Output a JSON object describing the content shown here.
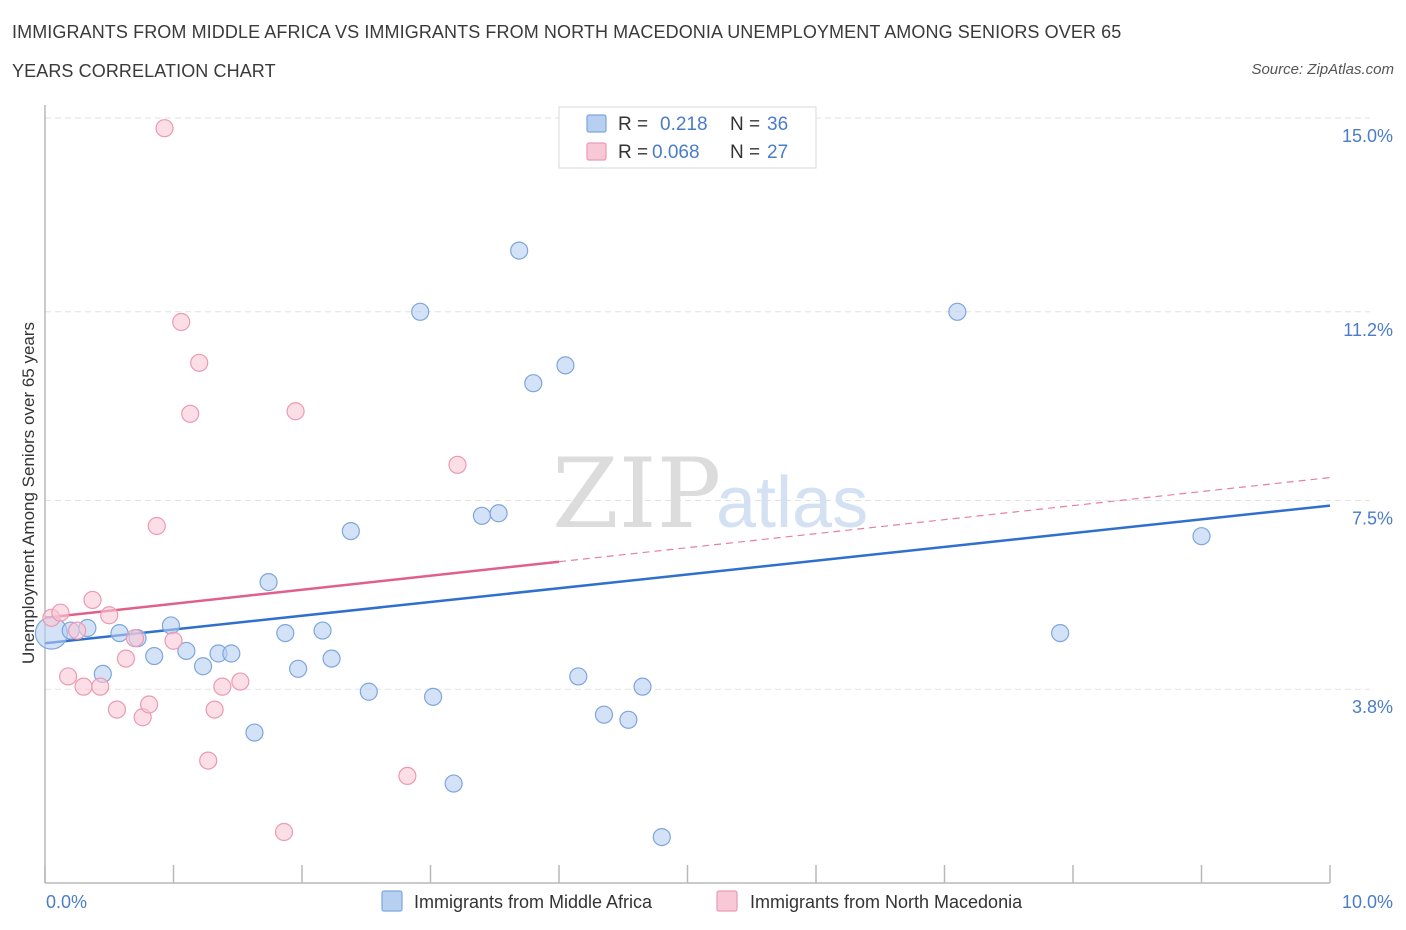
{
  "chart_data": {
    "type": "scatter",
    "title_line_1": "IMMIGRANTS FROM MIDDLE AFRICA VS IMMIGRANTS FROM NORTH MACEDONIA UNEMPLOYMENT AMONG SENIORS OVER 65",
    "title_line_2": "YEARS CORRELATION CHART",
    "source": "Source: ZipAtlas.com",
    "ylabel": "Unemployment Among Seniors over 65 years",
    "x_min_label": "0.0%",
    "x_max_label": "10.0%",
    "xlim": [
      0,
      10
    ],
    "ylim": [
      0,
      15
    ],
    "y_ticks": [
      {
        "value": 3.8,
        "label": "3.8%"
      },
      {
        "value": 7.5,
        "label": "7.5%"
      },
      {
        "value": 11.2,
        "label": "11.2%"
      },
      {
        "value": 15.0,
        "label": "15.0%"
      }
    ],
    "watermark": {
      "part1": "ZIP",
      "part2": "atlas"
    },
    "legend": {
      "r_label": "R =",
      "n_label": "N =",
      "entries": [
        {
          "r": "0.218",
          "n": "36"
        },
        {
          "r": "0.068",
          "n": "27"
        }
      ]
    },
    "series": [
      {
        "name": "Immigrants from Middle Africa",
        "fill": "#b7cff1",
        "stroke": "#7ea6dc",
        "trend_color": "#2f6fce",
        "trend": {
          "x0": 0.0,
          "y0": 4.7,
          "x1": 10.0,
          "y1": 7.4,
          "dashed_from": null
        },
        "points": [
          {
            "x": 0.05,
            "y": 4.9,
            "r": 16
          },
          {
            "x": 0.2,
            "y": 4.95
          },
          {
            "x": 0.33,
            "y": 5.0
          },
          {
            "x": 0.45,
            "y": 4.1
          },
          {
            "x": 0.58,
            "y": 4.9
          },
          {
            "x": 0.72,
            "y": 4.8
          },
          {
            "x": 0.85,
            "y": 4.45
          },
          {
            "x": 0.98,
            "y": 5.05
          },
          {
            "x": 1.1,
            "y": 4.55
          },
          {
            "x": 1.23,
            "y": 4.25
          },
          {
            "x": 1.35,
            "y": 4.5
          },
          {
            "x": 1.45,
            "y": 4.5
          },
          {
            "x": 1.63,
            "y": 2.95
          },
          {
            "x": 1.74,
            "y": 5.9
          },
          {
            "x": 1.87,
            "y": 4.9
          },
          {
            "x": 1.97,
            "y": 4.2
          },
          {
            "x": 2.16,
            "y": 4.95
          },
          {
            "x": 2.23,
            "y": 4.4
          },
          {
            "x": 2.38,
            "y": 6.9
          },
          {
            "x": 2.52,
            "y": 3.75
          },
          {
            "x": 2.92,
            "y": 11.2
          },
          {
            "x": 3.02,
            "y": 3.65
          },
          {
            "x": 3.18,
            "y": 1.95
          },
          {
            "x": 3.4,
            "y": 7.2
          },
          {
            "x": 3.53,
            "y": 7.25
          },
          {
            "x": 3.69,
            "y": 12.4
          },
          {
            "x": 3.8,
            "y": 9.8
          },
          {
            "x": 4.05,
            "y": 10.15
          },
          {
            "x": 4.15,
            "y": 4.05
          },
          {
            "x": 4.35,
            "y": 3.3
          },
          {
            "x": 4.54,
            "y": 3.2
          },
          {
            "x": 4.65,
            "y": 3.85
          },
          {
            "x": 4.8,
            "y": 0.9
          },
          {
            "x": 7.1,
            "y": 11.2
          },
          {
            "x": 7.9,
            "y": 4.9
          },
          {
            "x": 9.0,
            "y": 6.8
          }
        ]
      },
      {
        "name": "Immigrants from North Macedonia",
        "fill": "#f8c8d6",
        "stroke": "#eb9ab3",
        "trend_color": "#e0608a",
        "trend": {
          "x0": 0.0,
          "y0": 5.2,
          "x1": 10.0,
          "y1": 7.95,
          "dashed_from": 4.0
        },
        "points": [
          {
            "x": 0.05,
            "y": 5.2
          },
          {
            "x": 0.12,
            "y": 5.3
          },
          {
            "x": 0.18,
            "y": 4.05
          },
          {
            "x": 0.25,
            "y": 4.95
          },
          {
            "x": 0.3,
            "y": 3.85
          },
          {
            "x": 0.37,
            "y": 5.55
          },
          {
            "x": 0.43,
            "y": 3.85
          },
          {
            "x": 0.5,
            "y": 5.25
          },
          {
            "x": 0.56,
            "y": 3.4
          },
          {
            "x": 0.63,
            "y": 4.4
          },
          {
            "x": 0.7,
            "y": 4.8
          },
          {
            "x": 0.76,
            "y": 3.25
          },
          {
            "x": 0.81,
            "y": 3.5
          },
          {
            "x": 0.87,
            "y": 7.0
          },
          {
            "x": 0.93,
            "y": 14.8
          },
          {
            "x": 1.0,
            "y": 4.75
          },
          {
            "x": 1.06,
            "y": 11.0
          },
          {
            "x": 1.13,
            "y": 9.2
          },
          {
            "x": 1.2,
            "y": 10.2
          },
          {
            "x": 1.27,
            "y": 2.4
          },
          {
            "x": 1.32,
            "y": 3.4
          },
          {
            "x": 1.38,
            "y": 3.85
          },
          {
            "x": 1.52,
            "y": 3.95
          },
          {
            "x": 1.86,
            "y": 1.0
          },
          {
            "x": 1.95,
            "y": 9.25
          },
          {
            "x": 2.82,
            "y": 2.1
          },
          {
            "x": 3.21,
            "y": 8.2
          }
        ]
      }
    ]
  }
}
